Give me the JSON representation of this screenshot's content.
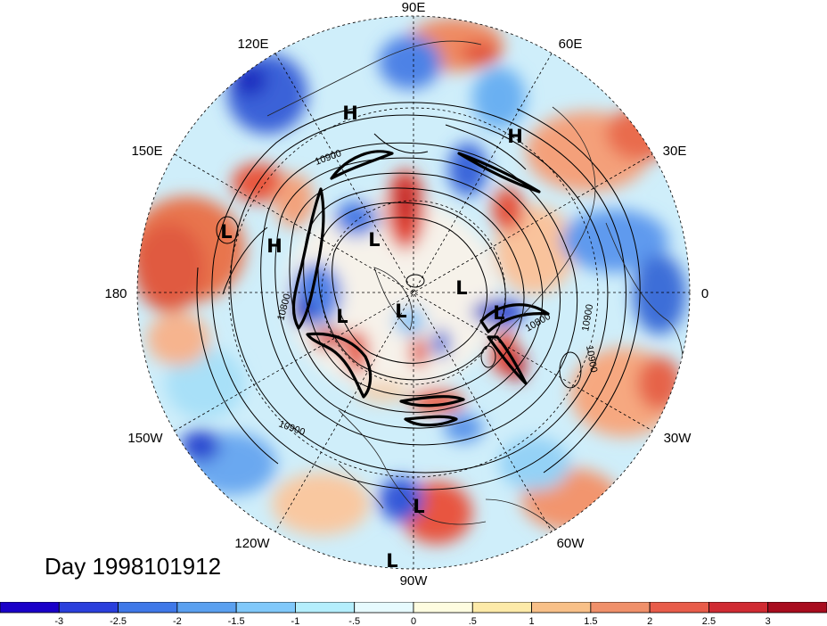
{
  "map": {
    "day_label": "Day 1998101912",
    "longitude_labels": [
      "90E",
      "60E",
      "30E",
      "0",
      "30W",
      "60W",
      "90W",
      "120W",
      "150W",
      "180",
      "150E",
      "120E"
    ],
    "pressure_labels": [
      "L",
      "L",
      "L",
      "L",
      "L",
      "L",
      "L",
      "L",
      "H",
      "H",
      "H"
    ],
    "contour_labels": [
      "10900",
      "10800",
      "10900",
      "10800",
      "10900",
      "10900"
    ],
    "colorbar": {
      "colors": [
        "#1a00c8",
        "#2a3fdc",
        "#3f78e8",
        "#5aa0f0",
        "#80c8fa",
        "#b4eefc",
        "#e6fafe",
        "#fefce0",
        "#fdeaa8",
        "#f8c088",
        "#f0906a",
        "#e85c4a",
        "#d02a32",
        "#a80c1e"
      ],
      "tick_labels": [
        "-3",
        "-2.5",
        "-2",
        "-1.5",
        "-1",
        "-.5",
        "0",
        ".5",
        "1",
        "1.5",
        "2",
        "2.5",
        "3"
      ]
    }
  }
}
